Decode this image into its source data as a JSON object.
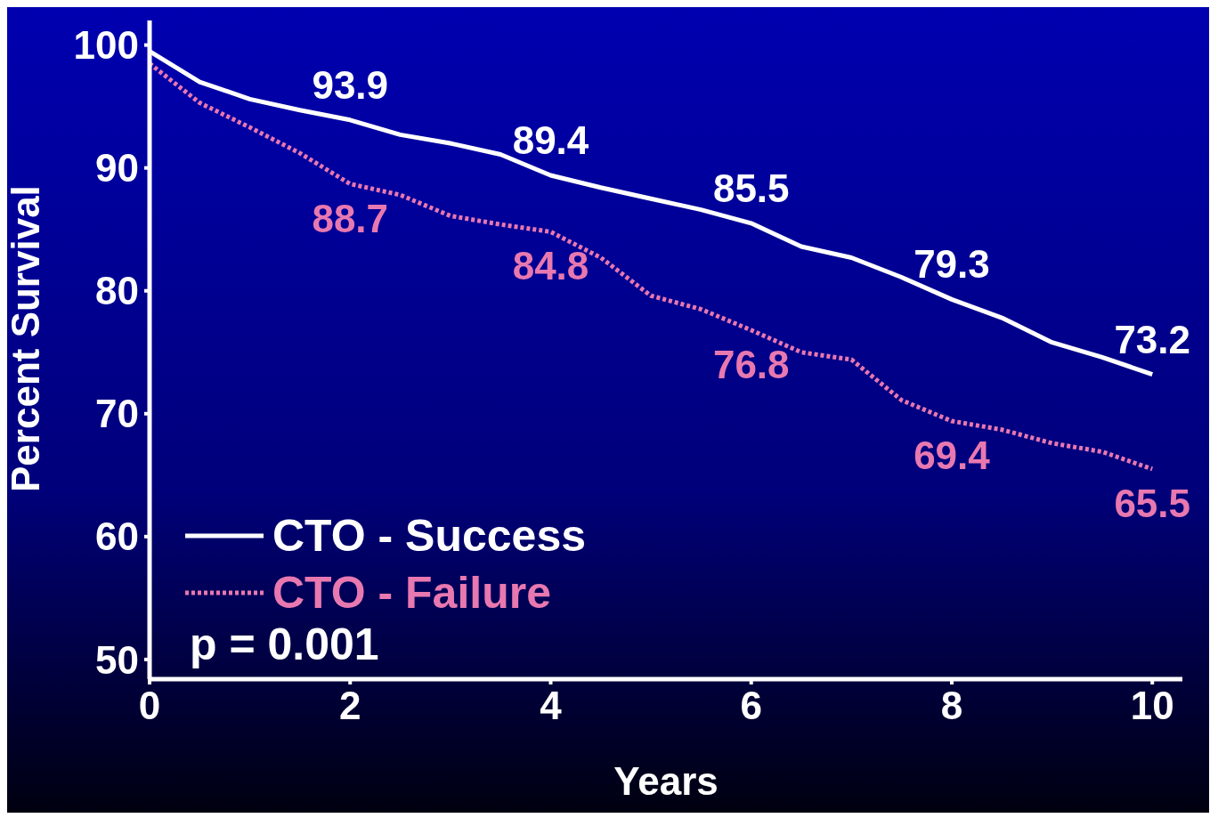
{
  "chart_data": {
    "type": "line",
    "xlabel": "Years",
    "ylabel": "Percent Survival",
    "x": [
      0,
      0.5,
      1,
      1.5,
      2,
      2.5,
      3,
      3.5,
      4,
      4.5,
      5,
      5.5,
      6,
      6.5,
      7,
      7.5,
      8,
      8.5,
      9,
      9.5,
      10
    ],
    "series": [
      {
        "name": "CTO - Success",
        "color": "#ffffff",
        "line_style": "solid",
        "values": [
          99.5,
          97.0,
          95.6,
          94.7,
          93.9,
          92.7,
          92.0,
          91.1,
          89.4,
          88.4,
          87.5,
          86.6,
          85.5,
          83.6,
          82.7,
          81.1,
          79.3,
          77.8,
          75.8,
          74.6,
          73.2
        ],
        "value_labels": [
          null,
          null,
          null,
          null,
          "93.9",
          null,
          null,
          null,
          "89.4",
          null,
          null,
          null,
          "85.5",
          null,
          null,
          null,
          "79.3",
          null,
          null,
          null,
          "73.2"
        ]
      },
      {
        "name": "CTO - Failure",
        "color": "#e878b0",
        "line_style": "dotted",
        "values": [
          98.5,
          95.3,
          93.3,
          91.2,
          88.7,
          87.8,
          86.1,
          85.4,
          84.8,
          82.7,
          79.6,
          78.5,
          76.8,
          75.0,
          74.4,
          71.1,
          69.4,
          68.7,
          67.6,
          66.9,
          65.5
        ],
        "value_labels": [
          null,
          null,
          null,
          null,
          "88.7",
          null,
          null,
          null,
          "84.8",
          null,
          null,
          null,
          "76.8",
          null,
          null,
          null,
          "69.4",
          null,
          null,
          null,
          "65.5"
        ]
      }
    ],
    "xlim": [
      0,
      10.3
    ],
    "xticks": [
      0,
      2,
      4,
      6,
      8,
      10
    ],
    "ylim": [
      48.4,
      102
    ],
    "yticks": [
      50,
      60,
      70,
      80,
      90,
      100
    ],
    "grid": false,
    "marker": "none",
    "legend": "bottom left",
    "annotations": [
      "p = 0.001"
    ]
  }
}
